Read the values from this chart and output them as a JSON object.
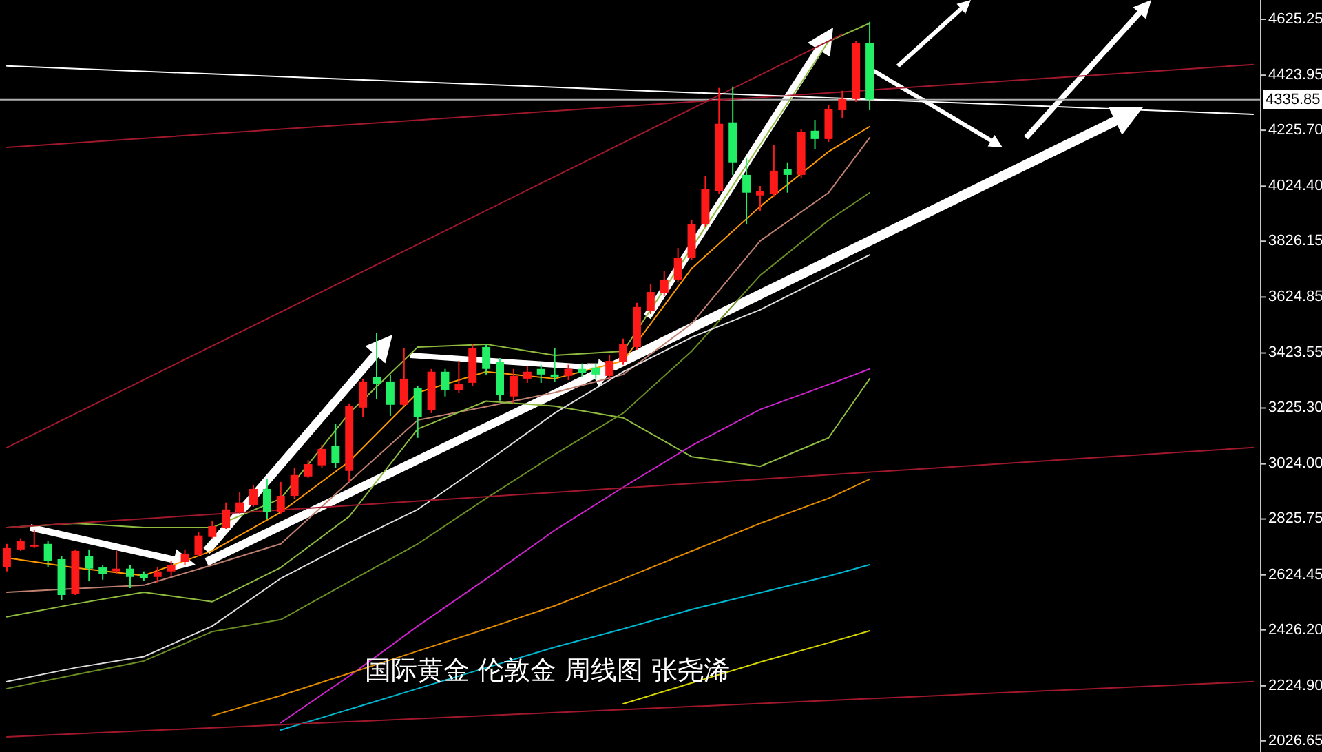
{
  "chart_data": {
    "type": "candlestick",
    "title": "国际黄金 伦敦金 周线图 张尧浠",
    "categories": [
      null,
      null,
      null,
      null,
      null,
      null,
      null,
      null,
      null,
      null,
      null,
      null,
      null,
      null,
      null,
      null,
      null,
      null,
      null,
      null,
      null,
      null,
      null,
      null,
      null,
      null,
      null,
      null,
      null,
      null,
      null,
      null,
      null,
      null,
      null,
      null,
      null,
      null,
      null,
      null,
      null,
      null,
      null,
      null,
      null,
      null,
      null,
      null,
      null,
      null,
      null,
      null,
      null,
      null,
      null,
      null,
      null,
      null,
      null,
      null,
      null,
      null,
      null,
      null,
      null,
      null,
      null,
      null,
      null,
      null,
      null,
      null,
      null,
      null,
      null,
      null,
      null,
      null,
      null,
      null,
      null,
      null,
      null,
      null,
      null,
      null,
      null,
      null,
      null,
      null,
      null,
      null
    ],
    "ohlc": [
      [
        2651,
        2736,
        2637,
        2721
      ],
      [
        2716,
        2756,
        2711,
        2746
      ],
      [
        2726,
        2785,
        2721,
        2731
      ],
      [
        2736,
        2746,
        2651,
        2676
      ],
      [
        2681,
        2691,
        2532,
        2552
      ],
      [
        2557,
        2716,
        2552,
        2711
      ],
      [
        2691,
        2716,
        2602,
        2647
      ],
      [
        2651,
        2661,
        2607,
        2627
      ],
      [
        2637,
        2711,
        2627,
        2647
      ],
      [
        2647,
        2661,
        2577,
        2617
      ],
      [
        2627,
        2637,
        2602,
        2612
      ],
      [
        2617,
        2651,
        2597,
        2637
      ],
      [
        2637,
        2676,
        2622,
        2661
      ],
      [
        2671,
        2716,
        2661,
        2701
      ],
      [
        2696,
        2780,
        2691,
        2766
      ],
      [
        2761,
        2820,
        2756,
        2800
      ],
      [
        2795,
        2885,
        2790,
        2860
      ],
      [
        2850,
        2924,
        2845,
        2885
      ],
      [
        2875,
        2949,
        2870,
        2934
      ],
      [
        2934,
        2969,
        2825,
        2850
      ],
      [
        2850,
        2959,
        2845,
        2909
      ],
      [
        2909,
        3009,
        2899,
        2984
      ],
      [
        2979,
        3038,
        2974,
        3023
      ],
      [
        3019,
        3093,
        3009,
        3078
      ],
      [
        3088,
        3167,
        3009,
        3028
      ],
      [
        2999,
        3242,
        2959,
        3232
      ],
      [
        3227,
        3331,
        3192,
        3321
      ],
      [
        3336,
        3495,
        3257,
        3311
      ],
      [
        3321,
        3346,
        3197,
        3237
      ],
      [
        3237,
        3440,
        3232,
        3331
      ],
      [
        3296,
        3306,
        3118,
        3192
      ],
      [
        3217,
        3366,
        3207,
        3356
      ],
      [
        3356,
        3366,
        3267,
        3291
      ],
      [
        3291,
        3395,
        3281,
        3311
      ],
      [
        3316,
        3455,
        3306,
        3440
      ],
      [
        3445,
        3455,
        3346,
        3366
      ],
      [
        3391,
        3405,
        3252,
        3271
      ],
      [
        3267,
        3366,
        3242,
        3341
      ],
      [
        3331,
        3376,
        3316,
        3356
      ],
      [
        3366,
        3381,
        3316,
        3346
      ],
      [
        3346,
        3440,
        3321,
        3336
      ],
      [
        3341,
        3381,
        3326,
        3366
      ],
      [
        3366,
        3386,
        3336,
        3351
      ],
      [
        3371,
        3386,
        3331,
        3346
      ],
      [
        3341,
        3415,
        3331,
        3395
      ],
      [
        3391,
        3475,
        3381,
        3455
      ],
      [
        3445,
        3604,
        3435,
        3589
      ],
      [
        3574,
        3673,
        3564,
        3643
      ],
      [
        3639,
        3718,
        3629,
        3688
      ],
      [
        3688,
        3802,
        3678,
        3767
      ],
      [
        3767,
        3901,
        3758,
        3887
      ],
      [
        3887,
        4060,
        3877,
        4015
      ],
      [
        4006,
        4378,
        3996,
        4249
      ],
      [
        4254,
        4383,
        4065,
        4110
      ],
      [
        4065,
        4125,
        3887,
        4001
      ],
      [
        3991,
        4025,
        3936,
        4006
      ],
      [
        3996,
        4174,
        3986,
        4080
      ],
      [
        4085,
        4110,
        4001,
        4065
      ],
      [
        4065,
        4229,
        4055,
        4219
      ],
      [
        4224,
        4263,
        4159,
        4194
      ],
      [
        4194,
        4318,
        4184,
        4303
      ],
      [
        4298,
        4368,
        4268,
        4338
      ],
      [
        4338,
        4546,
        4328,
        4541
      ],
      [
        4541,
        4616,
        4298,
        4336
      ],
      null,
      null,
      null,
      null,
      null,
      null,
      null,
      null,
      null,
      null,
      null,
      null,
      null,
      null,
      null,
      null,
      null,
      null,
      null,
      null,
      null,
      null,
      null,
      null,
      null,
      null,
      null,
      null
    ],
    "series": [
      {
        "type": "line",
        "color": "#ff9900",
        "values": [
          2686,
          null,
          null,
          null,
          null,
          2650,
          null,
          null,
          null,
          null,
          2622,
          null,
          null,
          null,
          null,
          2711,
          null,
          null,
          null,
          null,
          2850,
          null,
          null,
          null,
          null,
          3033,
          null,
          null,
          null,
          null,
          3281,
          null,
          null,
          null,
          null,
          3356,
          null,
          null,
          null,
          null,
          3331,
          null,
          null,
          null,
          null,
          3395,
          null,
          null,
          null,
          null,
          3728,
          null,
          null,
          null,
          null,
          3951,
          null,
          null,
          null,
          null,
          4149,
          null,
          null,
          4239,
          null,
          null,
          null,
          null,
          null,
          null,
          null,
          null,
          null,
          null,
          null,
          null,
          null,
          null,
          null,
          null,
          null,
          null,
          null,
          null,
          null,
          null,
          null,
          null,
          null,
          null,
          null,
          null
        ]
      },
      {
        "type": "line",
        "color": "#c08070",
        "values": [
          2562,
          null,
          null,
          null,
          null,
          2575,
          null,
          null,
          null,
          null,
          2587,
          null,
          null,
          null,
          null,
          2660,
          null,
          null,
          null,
          null,
          2736,
          null,
          null,
          null,
          null,
          2960,
          null,
          null,
          null,
          null,
          3182,
          null,
          null,
          null,
          null,
          3230,
          null,
          null,
          null,
          null,
          3281,
          null,
          null,
          null,
          null,
          3346,
          null,
          null,
          null,
          null,
          3529,
          null,
          null,
          null,
          null,
          3827,
          null,
          null,
          null,
          null,
          4001,
          null,
          null,
          4199,
          null,
          null,
          null,
          null,
          null,
          null,
          null,
          null,
          null,
          null,
          null,
          null,
          null,
          null,
          null,
          null,
          null,
          null,
          null,
          null,
          null,
          null,
          null,
          null,
          null,
          null,
          null,
          null
        ]
      },
      {
        "type": "line",
        "color": "#8fbc3f",
        "values": [
          2795,
          null,
          null,
          null,
          null,
          2810,
          null,
          null,
          null,
          null,
          2795,
          null,
          null,
          null,
          null,
          2795,
          null,
          null,
          null,
          null,
          2899,
          null,
          null,
          null,
          null,
          3207,
          null,
          null,
          null,
          null,
          3445,
          null,
          null,
          null,
          null,
          3455,
          null,
          null,
          null,
          null,
          3415,
          null,
          null,
          null,
          null,
          3430,
          null,
          null,
          null,
          null,
          null,
          null,
          null,
          null,
          null,
          4174,
          null,
          null,
          null,
          null,
          4546,
          null,
          null,
          4611,
          null,
          null,
          null,
          null,
          null,
          null,
          null,
          null,
          null,
          null,
          null,
          null,
          null,
          null,
          null,
          null,
          null,
          null,
          null,
          null,
          null,
          null,
          null,
          null,
          null,
          null,
          null,
          null
        ]
      },
      {
        "type": "line",
        "color": "#8fbc3f",
        "values": [
          2473,
          null,
          null,
          null,
          null,
          2520,
          null,
          null,
          null,
          null,
          2562,
          null,
          null,
          null,
          null,
          2528,
          null,
          null,
          null,
          null,
          2651,
          null,
          null,
          null,
          null,
          2835,
          null,
          null,
          null,
          null,
          3150,
          null,
          null,
          null,
          null,
          3250,
          null,
          null,
          null,
          null,
          3232,
          null,
          null,
          null,
          null,
          3190,
          null,
          null,
          null,
          null,
          3050,
          null,
          null,
          null,
          null,
          3015,
          null,
          null,
          null,
          null,
          3118,
          null,
          null,
          3331,
          null,
          null,
          null,
          null,
          null,
          null,
          null,
          null,
          null,
          null,
          null,
          null,
          null,
          null,
          null,
          null,
          null,
          null,
          null,
          null,
          null,
          null,
          null,
          null,
          null,
          null,
          null,
          null
        ]
      },
      {
        "type": "line",
        "color": "#6b8e23",
        "values": [
          2215,
          null,
          null,
          null,
          null,
          2265,
          null,
          null,
          null,
          null,
          2314,
          null,
          null,
          null,
          null,
          2420,
          null,
          null,
          null,
          null,
          2463,
          null,
          null,
          null,
          null,
          2600,
          null,
          null,
          null,
          null,
          2736,
          null,
          null,
          null,
          null,
          2900,
          null,
          null,
          null,
          null,
          3058,
          null,
          null,
          null,
          null,
          3207,
          null,
          null,
          null,
          null,
          3430,
          null,
          null,
          null,
          null,
          3703,
          null,
          null,
          null,
          null,
          3901,
          null,
          null,
          4001,
          null,
          null,
          null,
          null,
          null,
          null,
          null,
          null,
          null,
          null,
          null,
          null,
          null,
          null,
          null,
          null,
          null,
          null,
          null,
          null,
          null,
          null,
          null,
          null,
          null,
          null,
          null,
          null
        ]
      },
      {
        "type": "line",
        "color": "#dddddd",
        "values": [
          2240,
          null,
          null,
          null,
          null,
          2290,
          null,
          null,
          null,
          null,
          2330,
          null,
          null,
          null,
          null,
          2440,
          null,
          null,
          null,
          null,
          2612,
          null,
          null,
          null,
          null,
          2740,
          null,
          null,
          null,
          null,
          2860,
          null,
          null,
          null,
          null,
          3030,
          null,
          null,
          null,
          null,
          3207,
          null,
          null,
          null,
          null,
          3356,
          null,
          null,
          null,
          null,
          3480,
          null,
          null,
          null,
          null,
          3579,
          null,
          null,
          null,
          null,
          3703,
          null,
          null,
          3777,
          null,
          null,
          null,
          null,
          null,
          null,
          null,
          null,
          null,
          null,
          null,
          null,
          null,
          null,
          null,
          null,
          null,
          null,
          null,
          null,
          null,
          null,
          null,
          null,
          null,
          null,
          null,
          null
        ]
      },
      {
        "type": "line",
        "color": "#cc22cc",
        "values": [
          null,
          null,
          null,
          null,
          null,
          null,
          null,
          null,
          null,
          null,
          null,
          null,
          null,
          null,
          null,
          null,
          null,
          null,
          null,
          null,
          2092,
          null,
          null,
          null,
          null,
          2260,
          null,
          null,
          null,
          null,
          2440,
          null,
          null,
          null,
          null,
          2610,
          null,
          null,
          null,
          null,
          2785,
          null,
          null,
          null,
          null,
          2940,
          null,
          null,
          null,
          null,
          3090,
          null,
          null,
          null,
          null,
          3220,
          null,
          null,
          null,
          null,
          3310,
          null,
          null,
          3366,
          null,
          null,
          null,
          null,
          null,
          null,
          null,
          null,
          null,
          null,
          null,
          null,
          null,
          null,
          null,
          null,
          null,
          null,
          null,
          null,
          null,
          null,
          null,
          null,
          null,
          null,
          null,
          null
        ]
      },
      {
        "type": "line",
        "color": "#e08a00",
        "values": [
          null,
          null,
          null,
          null,
          null,
          null,
          null,
          null,
          null,
          null,
          null,
          null,
          null,
          null,
          null,
          2117,
          null,
          null,
          null,
          null,
          2190,
          null,
          null,
          null,
          null,
          2270,
          null,
          null,
          null,
          null,
          2350,
          null,
          null,
          null,
          null,
          2430,
          null,
          null,
          null,
          null,
          2513,
          null,
          null,
          null,
          null,
          2610,
          null,
          null,
          null,
          null,
          2710,
          null,
          null,
          null,
          null,
          2810,
          null,
          null,
          null,
          null,
          2900,
          null,
          null,
          2969,
          null,
          null,
          null,
          null,
          null,
          null,
          null,
          null,
          null,
          null,
          null,
          null,
          null,
          null,
          null,
          null,
          null,
          null,
          null,
          null,
          null,
          null,
          null,
          null,
          null,
          null,
          null,
          null
        ]
      },
      {
        "type": "line",
        "color": "#00b7d0",
        "values": [
          null,
          null,
          null,
          null,
          null,
          null,
          null,
          null,
          null,
          null,
          null,
          null,
          null,
          null,
          null,
          null,
          null,
          null,
          null,
          null,
          2066,
          null,
          null,
          null,
          null,
          2140,
          null,
          null,
          null,
          null,
          2215,
          null,
          null,
          null,
          null,
          2290,
          null,
          null,
          null,
          null,
          2364,
          null,
          null,
          null,
          null,
          2430,
          null,
          null,
          null,
          null,
          2500,
          null,
          null,
          null,
          null,
          2560,
          null,
          null,
          null,
          null,
          2620,
          null,
          null,
          2661,
          null,
          null,
          null,
          null,
          null,
          null,
          null,
          null,
          null,
          null,
          null,
          null,
          null,
          null,
          null,
          null,
          null,
          null,
          null,
          null,
          null,
          null,
          null,
          null,
          null,
          null,
          null,
          null
        ]
      },
      {
        "type": "line",
        "color": "#d6d600",
        "values": [
          null,
          null,
          null,
          null,
          null,
          null,
          null,
          null,
          null,
          null,
          null,
          null,
          null,
          null,
          null,
          null,
          null,
          null,
          null,
          null,
          null,
          null,
          null,
          null,
          null,
          null,
          null,
          null,
          null,
          null,
          null,
          null,
          null,
          null,
          null,
          null,
          null,
          null,
          null,
          null,
          null,
          null,
          null,
          null,
          null,
          2160,
          null,
          null,
          null,
          null,
          2235,
          null,
          null,
          null,
          null,
          2310,
          null,
          null,
          null,
          null,
          2380,
          null,
          null,
          2423,
          null,
          null,
          null,
          null,
          null,
          null,
          null,
          null,
          null,
          null,
          null,
          null,
          null,
          null,
          null,
          null,
          null,
          null,
          null,
          null,
          null,
          null,
          null,
          null,
          null,
          null,
          null,
          null
        ]
      },
      {
        "type": "line",
        "color": "#a0182c",
        "values": [
          3083,
          null,
          null,
          null,
          null,
          null,
          null,
          null,
          null,
          null,
          null,
          null,
          null,
          null,
          null,
          null,
          null,
          null,
          null,
          null,
          null,
          null,
          null,
          null,
          null,
          null,
          null,
          null,
          null,
          null,
          null,
          null,
          null,
          null,
          null,
          null,
          null,
          null,
          null,
          null,
          null,
          null,
          null,
          null,
          null,
          null,
          null,
          null,
          null,
          null,
          null,
          null,
          null,
          null,
          null,
          null,
          null,
          null,
          null,
          null,
          null,
          4571,
          null,
          null,
          null,
          null,
          null,
          null,
          null,
          null,
          null,
          null,
          null,
          null,
          null,
          null,
          null,
          null,
          null,
          null,
          null,
          null,
          null,
          null,
          null,
          null,
          null,
          null,
          null,
          null,
          null,
          null
        ]
      },
      {
        "type": "line",
        "color": "#a0182c",
        "values": [
          4164,
          null,
          null,
          null,
          null,
          null,
          null,
          null,
          null,
          null,
          null,
          null,
          null,
          null,
          null,
          null,
          null,
          null,
          null,
          null,
          null,
          null,
          null,
          null,
          null,
          null,
          null,
          null,
          null,
          null,
          null,
          null,
          null,
          null,
          null,
          null,
          null,
          null,
          null,
          null,
          null,
          null,
          null,
          null,
          null,
          null,
          null,
          null,
          null,
          null,
          null,
          null,
          null,
          null,
          null,
          null,
          null,
          null,
          null,
          null,
          null,
          null,
          null,
          null,
          null,
          null,
          null,
          null,
          null,
          null,
          null,
          null,
          null,
          null,
          null,
          null,
          null,
          null,
          null,
          null,
          null,
          null,
          null,
          null,
          null,
          null,
          null,
          null,
          null,
          null,
          null,
          4462
        ]
      },
      {
        "type": "line",
        "color": "#a0182c",
        "values": [
          2795,
          null,
          null,
          null,
          null,
          null,
          null,
          null,
          null,
          null,
          null,
          null,
          null,
          null,
          null,
          null,
          null,
          null,
          null,
          null,
          null,
          null,
          null,
          null,
          null,
          null,
          null,
          null,
          null,
          null,
          null,
          null,
          null,
          null,
          null,
          null,
          null,
          null,
          null,
          null,
          null,
          null,
          null,
          null,
          null,
          null,
          null,
          null,
          null,
          null,
          null,
          null,
          null,
          null,
          null,
          null,
          null,
          null,
          null,
          null,
          null,
          null,
          null,
          null,
          null,
          null,
          null,
          null,
          null,
          null,
          null,
          null,
          null,
          null,
          null,
          null,
          null,
          null,
          null,
          null,
          null,
          null,
          null,
          null,
          null,
          null,
          null,
          null,
          null,
          null,
          null,
          3083
        ]
      },
      {
        "type": "line",
        "color": "#a0182c",
        "values": [
          2041,
          null,
          null,
          null,
          null,
          null,
          null,
          null,
          null,
          null,
          null,
          null,
          null,
          null,
          null,
          null,
          null,
          null,
          null,
          null,
          null,
          null,
          null,
          null,
          null,
          null,
          null,
          null,
          null,
          null,
          null,
          null,
          null,
          null,
          null,
          null,
          null,
          null,
          null,
          null,
          null,
          null,
          null,
          null,
          null,
          null,
          null,
          null,
          null,
          null,
          null,
          null,
          null,
          null,
          null,
          null,
          null,
          null,
          null,
          null,
          null,
          null,
          null,
          null,
          null,
          null,
          null,
          null,
          null,
          null,
          null,
          null,
          null,
          null,
          null,
          null,
          null,
          null,
          null,
          null,
          null,
          null,
          null,
          null,
          null,
          null,
          null,
          null,
          null,
          null,
          null,
          2240
        ]
      },
      {
        "type": "line",
        "color": "#ffffff",
        "values": [
          4457,
          null,
          null,
          null,
          null,
          null,
          null,
          null,
          null,
          null,
          null,
          null,
          null,
          null,
          null,
          null,
          null,
          null,
          null,
          null,
          null,
          null,
          null,
          null,
          null,
          null,
          null,
          null,
          null,
          null,
          null,
          null,
          null,
          null,
          null,
          null,
          null,
          null,
          null,
          null,
          null,
          null,
          null,
          null,
          null,
          null,
          null,
          null,
          null,
          null,
          null,
          null,
          null,
          null,
          null,
          null,
          null,
          null,
          null,
          null,
          null,
          null,
          null,
          null,
          null,
          null,
          null,
          null,
          null,
          null,
          null,
          null,
          null,
          null,
          null,
          null,
          null,
          null,
          null,
          null,
          null,
          null,
          null,
          null,
          null,
          null,
          null,
          null,
          null,
          null,
          null,
          4283
        ]
      }
    ],
    "colors": [
      "#ff1a1a",
      "#ff1a1a",
      "#ff1a1a",
      "#22ee66",
      "#22ee66",
      "#ff1a1a",
      "#22ee66",
      "#22ee66",
      "#ff1a1a",
      "#22ee66",
      "#22ee66",
      "#ff1a1a",
      "#ff1a1a",
      "#ff1a1a",
      "#ff1a1a",
      "#ff1a1a",
      "#ff1a1a",
      "#ff1a1a",
      "#ff1a1a",
      "#22ee66",
      "#ff1a1a",
      "#ff1a1a",
      "#ff1a1a",
      "#ff1a1a",
      "#22ee66",
      "#ff1a1a",
      "#ff1a1a",
      "#22ee66",
      "#22ee66",
      "#ff1a1a",
      "#22ee66",
      "#ff1a1a",
      "#22ee66",
      "#ff1a1a",
      "#ff1a1a",
      "#22ee66",
      "#22ee66",
      "#ff1a1a",
      "#ff1a1a",
      "#22ee66",
      "#22ee66",
      "#ff1a1a",
      "#22ee66",
      "#22ee66",
      "#ff1a1a",
      "#ff1a1a",
      "#ff1a1a",
      "#ff1a1a",
      "#ff1a1a",
      "#ff1a1a",
      "#ff1a1a",
      "#ff1a1a",
      "#ff1a1a",
      "#22ee66",
      "#22ee66",
      "#ff1a1a",
      "#ff1a1a",
      "#22ee66",
      "#ff1a1a",
      "#22ee66",
      "#ff1a1a",
      "#ff1a1a",
      "#ff1a1a",
      "#22ee66",
      null,
      null,
      null,
      null,
      null,
      null,
      null,
      null,
      null,
      null,
      null,
      null,
      null,
      null,
      null,
      null,
      null,
      null,
      null,
      null,
      null,
      null,
      null,
      null,
      null,
      null,
      null,
      null
    ],
    "ref_lines": [
      {
        "axis": "y",
        "value": 4335.85,
        "label": "4335.85",
        "color": "#b0b0b0"
      }
    ],
    "ylim": [
      1986.5,
      4694.7
    ],
    "yticks": [
      {
        "value": 4625.25,
        "label": "4625.25"
      },
      {
        "value": 4423.95,
        "label": "4423.95"
      },
      {
        "value": 4225.7,
        "label": "4225.70"
      },
      {
        "value": 4024.4,
        "label": "4024.40"
      },
      {
        "value": 3826.15,
        "label": "3826.15"
      },
      {
        "value": 3624.85,
        "label": "3624.85"
      },
      {
        "value": 3423.55,
        "label": "3423.55"
      },
      {
        "value": 3225.3,
        "label": "3225.30"
      },
      {
        "value": 3024,
        "label": "3024.00"
      },
      {
        "value": 2825.75,
        "label": "2825.75"
      },
      {
        "value": 2624.45,
        "label": "2624.45"
      },
      {
        "value": 2426.2,
        "label": "2426.20"
      },
      {
        "value": 2224.9,
        "label": "2224.90"
      },
      {
        "value": 2026.65,
        "label": "2026.65"
      }
    ],
    "tick_labels": "y",
    "grid": false
  }
}
